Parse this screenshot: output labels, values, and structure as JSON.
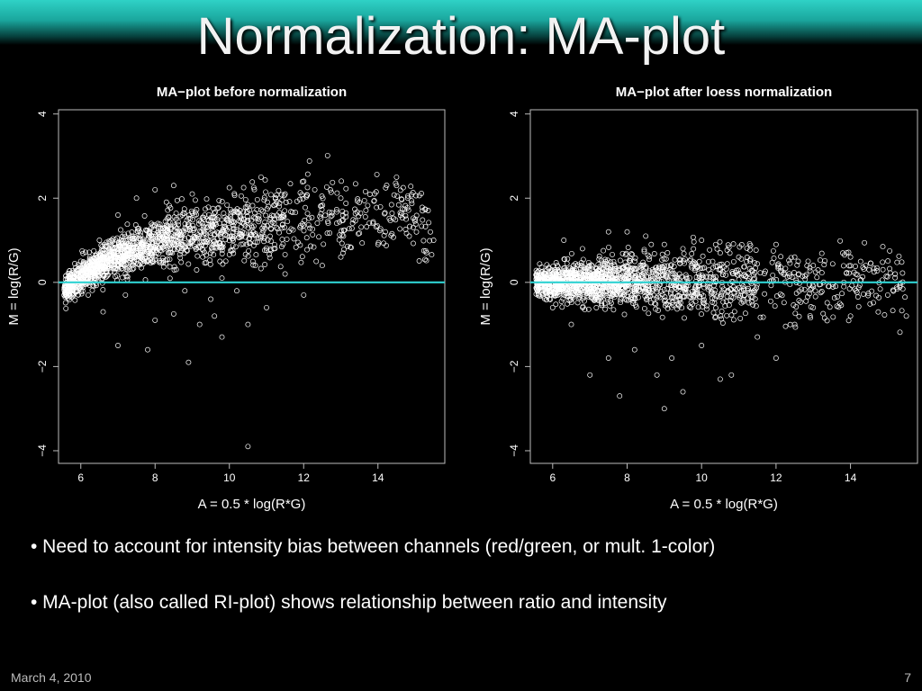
{
  "slide": {
    "title": "Normalization: MA-plot",
    "bullets": [
      "• Need to account for intensity bias between channels (red/green, or mult. 1-color)",
      "• MA-plot (also called RI-plot) shows relationship between ratio and intensity"
    ],
    "footer_date": "March 4, 2010",
    "page_number": "7"
  },
  "colors": {
    "background": "#000000",
    "points": "#ffffff",
    "reference_line": "#2fd2d2",
    "header_band": "#2fd2c6"
  },
  "chart_data": [
    {
      "type": "scatter",
      "title": "MA−plot before normalization",
      "xlabel": "A = 0.5 * log(R*G)",
      "ylabel": "M = log(R/G)",
      "xlim": [
        5.4,
        15.8
      ],
      "ylim": [
        -4.3,
        4.1
      ],
      "xticks": [
        "6",
        "8",
        "10",
        "12",
        "14"
      ],
      "yticks": [
        "−4",
        "−2",
        "0",
        "2",
        "4"
      ],
      "reference_line_y": 0,
      "trend": [
        [
          5.5,
          -0.2
        ],
        [
          6,
          0.15
        ],
        [
          7,
          0.65
        ],
        [
          8,
          0.95
        ],
        [
          9,
          1.15
        ],
        [
          10,
          1.3
        ],
        [
          11,
          1.45
        ],
        [
          12,
          1.55
        ],
        [
          13,
          1.6
        ],
        [
          14,
          1.55
        ],
        [
          15,
          1.45
        ],
        [
          15.6,
          1.0
        ]
      ],
      "series": [
        {
          "values": [
            [
              7.0,
              -1.5
            ],
            [
              7.8,
              -1.6
            ],
            [
              8.9,
              -1.9
            ],
            [
              9.8,
              -1.3
            ],
            [
              10.5,
              -3.9
            ],
            [
              9.2,
              -1.0
            ],
            [
              10.5,
              -1.0
            ],
            [
              8.0,
              -0.9
            ],
            [
              6.6,
              -0.7
            ],
            [
              8.5,
              -0.75
            ],
            [
              9.6,
              -0.8
            ],
            [
              11.0,
              -0.6
            ],
            [
              12.0,
              -0.3
            ],
            [
              12.5,
              0.4
            ],
            [
              14.0,
              0.9
            ],
            [
              14.8,
              2.0
            ],
            [
              14.5,
              2.3
            ],
            [
              15.0,
              1.5
            ],
            [
              15.5,
              1.0
            ],
            [
              12.0,
              2.4
            ],
            [
              12.3,
              2.2
            ],
            [
              13.0,
              2.0
            ],
            [
              13.5,
              1.9
            ],
            [
              8.0,
              2.2
            ],
            [
              8.5,
              2.3
            ],
            [
              9.0,
              2.1
            ],
            [
              10.0,
              2.25
            ],
            [
              11.5,
              2.1
            ],
            [
              14.5,
              2.5
            ],
            [
              6.0,
              0.5
            ],
            [
              6.5,
              1.0
            ],
            [
              7.0,
              1.6
            ],
            [
              7.5,
              2.0
            ],
            [
              7.2,
              -0.3
            ],
            [
              8.8,
              -0.2
            ],
            [
              9.5,
              -0.4
            ],
            [
              10.2,
              -0.2
            ],
            [
              11.5,
              0.2
            ],
            [
              6.2,
              -0.3
            ],
            [
              5.8,
              -0.1
            ],
            [
              9.8,
              0.1
            ],
            [
              10.7,
              0.4
            ],
            [
              11.2,
              0.8
            ],
            [
              13.0,
              0.6
            ],
            [
              14.2,
              1.2
            ],
            [
              15.2,
              1.7
            ]
          ]
        }
      ]
    },
    {
      "type": "scatter",
      "title": "MA−plot after loess normalization",
      "xlabel": "A = 0.5 * log(R*G)",
      "ylabel": "M = log(R/G)",
      "xlim": [
        5.4,
        15.8
      ],
      "ylim": [
        -4.3,
        4.1
      ],
      "xticks": [
        "6",
        "8",
        "10",
        "12",
        "14"
      ],
      "yticks": [
        "−4",
        "−2",
        "0",
        "2",
        "4"
      ],
      "reference_line_y": 0,
      "trend": [
        [
          5.5,
          0
        ],
        [
          6,
          0
        ],
        [
          8,
          0
        ],
        [
          10,
          0
        ],
        [
          12,
          0
        ],
        [
          14,
          0
        ],
        [
          15.6,
          0
        ]
      ],
      "series": [
        {
          "values": [
            [
              7.0,
              -2.2
            ],
            [
              7.8,
              -2.7
            ],
            [
              8.8,
              -2.2
            ],
            [
              9.0,
              -3.0
            ],
            [
              9.5,
              -2.6
            ],
            [
              10.5,
              -2.3
            ],
            [
              10.8,
              -2.2
            ],
            [
              12.0,
              -1.8
            ],
            [
              11.5,
              -1.3
            ],
            [
              12.5,
              -1.0
            ],
            [
              13.0,
              -0.6
            ],
            [
              14.0,
              -0.8
            ],
            [
              15.0,
              -0.3
            ],
            [
              15.5,
              -0.8
            ],
            [
              7.5,
              -1.8
            ],
            [
              8.2,
              -1.6
            ],
            [
              9.2,
              -1.8
            ],
            [
              10.0,
              -1.5
            ],
            [
              6.5,
              -1.0
            ],
            [
              6.0,
              -0.6
            ],
            [
              6.3,
              1.0
            ],
            [
              6.8,
              0.8
            ],
            [
              7.5,
              1.2
            ],
            [
              8.0,
              1.2
            ],
            [
              8.5,
              1.1
            ],
            [
              9.0,
              0.9
            ],
            [
              9.5,
              0.8
            ],
            [
              10.0,
              1.0
            ],
            [
              10.5,
              0.7
            ],
            [
              11.0,
              0.6
            ],
            [
              12.0,
              0.9
            ],
            [
              12.5,
              0.6
            ],
            [
              13.0,
              0.4
            ],
            [
              14.0,
              0.6
            ],
            [
              14.5,
              0.3
            ],
            [
              15.2,
              0.2
            ]
          ]
        }
      ]
    }
  ]
}
